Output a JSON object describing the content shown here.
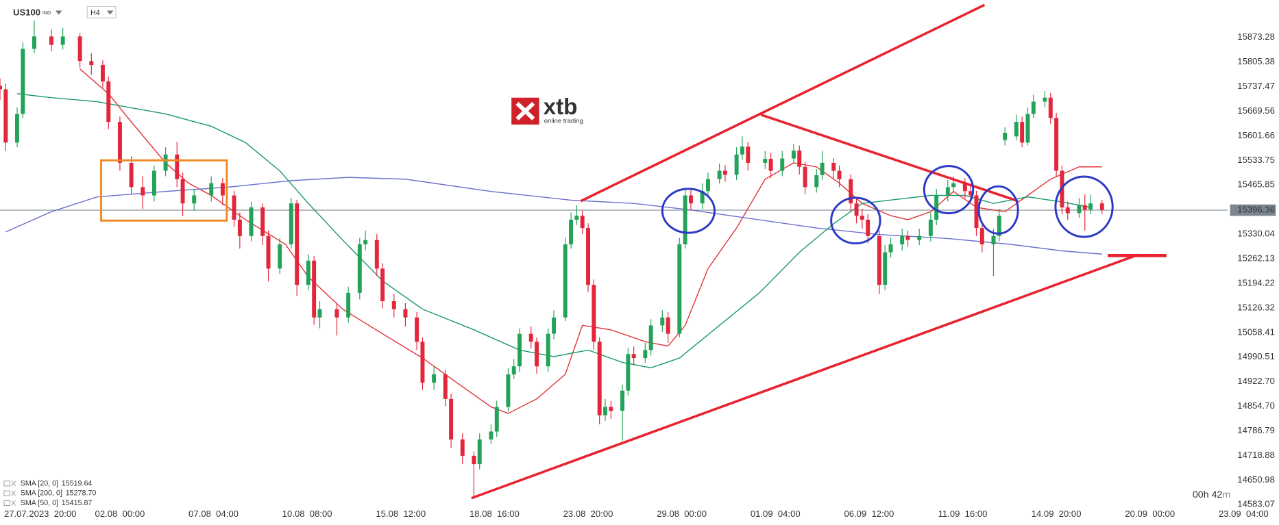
{
  "chart_data": {
    "type": "candlestick",
    "symbol": "US100",
    "market": "IND",
    "timeframe": "H4",
    "logo": {
      "brand": "xtb",
      "tagline": "online trading"
    },
    "timer": [
      "00h 42",
      "m"
    ],
    "last_price": 15396.36,
    "up_color": "#23a35a",
    "down_color": "#e3263b",
    "xlim": [
      0,
      224
    ],
    "ylim": [
      14578.6,
      15976.7
    ],
    "grid": false,
    "xticks": [
      {
        "value": 0,
        "label": "27.07.2023  20:00"
      },
      {
        "value": 21,
        "label": "02.08  00:00"
      },
      {
        "value": 37.4,
        "label": "07.08  04:00"
      },
      {
        "value": 53.8,
        "label": "10.08  08:00"
      },
      {
        "value": 70.2,
        "label": "15.08  12:00"
      },
      {
        "value": 86.6,
        "label": "18.08  16:00"
      },
      {
        "value": 103,
        "label": "23.08  20:00"
      },
      {
        "value": 119.4,
        "label": "29.08  00:00"
      },
      {
        "value": 135.8,
        "label": "01.09  04:00"
      },
      {
        "value": 152.2,
        "label": "06.09  12:00"
      },
      {
        "value": 168.6,
        "label": "11.09  16:00"
      },
      {
        "value": 185,
        "label": "14.09  20:00"
      },
      {
        "value": 201.4,
        "label": "20.09  00:00"
      },
      {
        "value": 217.8,
        "label": "23.09  04:00"
      }
    ],
    "yticks": [
      15873.28,
      15805.38,
      15737.47,
      15669.56,
      15601.66,
      15533.75,
      15465.85,
      15330.04,
      15262.13,
      15194.22,
      15126.32,
      15058.41,
      14990.51,
      {
        "value": 14922.7,
        "label": "14922.70"
      },
      {
        "value": 14854.7,
        "label": "14854.70"
      },
      14786.79,
      14718.88,
      14650.98,
      14583.07
    ],
    "x": [
      0,
      1,
      3,
      4,
      6,
      9,
      11,
      14,
      16,
      18,
      19,
      21,
      23,
      25,
      27,
      29,
      31,
      32,
      34,
      37,
      39,
      41,
      42,
      44,
      46,
      47,
      49,
      51,
      52,
      54,
      55,
      56,
      59,
      61,
      63,
      64,
      66,
      67,
      69,
      71,
      73,
      74,
      76,
      78,
      79,
      81,
      83,
      84,
      86,
      87,
      89,
      90,
      91,
      93,
      94,
      96,
      97,
      99,
      100,
      101,
      102,
      103,
      104,
      105,
      106,
      107,
      109,
      110,
      111,
      113,
      114,
      116,
      117,
      119,
      120,
      121,
      123,
      124,
      126,
      127,
      129,
      130,
      131,
      134,
      135,
      137,
      139,
      140,
      141,
      143,
      144,
      146,
      147,
      149,
      150,
      151,
      152,
      154,
      155,
      156,
      158,
      159,
      161,
      163,
      164,
      166,
      167,
      169,
      170,
      171,
      172,
      174,
      175,
      176,
      178,
      179,
      180,
      181,
      183,
      184,
      185,
      186,
      187,
      189,
      190,
      191,
      193
    ],
    "open": [
      15740,
      15730,
      15583,
      15662,
      15842,
      15876,
      15853,
      15876,
      15808,
      15797,
      15752,
      15640,
      15527,
      15460,
      15437,
      15505,
      15550,
      15482,
      15415,
      15437,
      15471,
      15437,
      15370,
      15325,
      15404,
      15325,
      15235,
      15302,
      15415,
      15190,
      15257,
      15100,
      15123,
      15100,
      15168,
      15302,
      15314,
      15235,
      15145,
      15123,
      15100,
      15033,
      14920,
      14943,
      14875,
      14763,
      14718,
      14695,
      14763,
      14785,
      14853,
      14943,
      14965,
      15055,
      15033,
      14965,
      15055,
      15100,
      15302,
      15370,
      15381,
      15347,
      15190,
      15033,
      14830,
      14853,
      14842,
      14898,
      14999,
      14988,
      15010,
      15078,
      15100,
      15055,
      15302,
      15437,
      15415,
      15449,
      15482,
      15505,
      15494,
      15550,
      15572,
      15527,
      15538,
      15505,
      15539,
      15561,
      15516,
      15460,
      15493,
      15527,
      15505,
      15482,
      15415,
      15381,
      15370,
      15325,
      15190,
      15280,
      15302,
      15325,
      15314,
      15325,
      15370,
      15437,
      15460,
      15471,
      15449,
      15437,
      15347,
      15302,
      15325,
      15590,
      15600,
      15640,
      15583,
      15662,
      15696,
      15707,
      15651,
      15505,
      15404,
      15388,
      15410,
      15398,
      15415
    ],
    "high": [
      15760,
      15745,
      15680,
      15860,
      15920,
      15895,
      15900,
      15885,
      15830,
      15810,
      15765,
      15655,
      15545,
      15490,
      15520,
      15570,
      15585,
      15500,
      15455,
      15490,
      15485,
      15450,
      15390,
      15420,
      15415,
      15340,
      15320,
      15430,
      15425,
      15275,
      15270,
      15145,
      15140,
      15185,
      15320,
      15340,
      15330,
      15250,
      15165,
      15140,
      15115,
      15045,
      14965,
      14955,
      14890,
      14780,
      14730,
      14780,
      14805,
      14870,
      14960,
      14985,
      15070,
      15075,
      15045,
      15070,
      15120,
      15320,
      15390,
      15410,
      15395,
      15360,
      15205,
      15045,
      14875,
      14870,
      14915,
      15015,
      15020,
      15030,
      15095,
      15120,
      15115,
      15320,
      15455,
      15455,
      15470,
      15500,
      15525,
      15520,
      15570,
      15600,
      15585,
      15560,
      15555,
      15560,
      15580,
      15575,
      15530,
      15510,
      15560,
      15540,
      15520,
      15495,
      15430,
      15400,
      15385,
      15340,
      15300,
      15320,
      15345,
      15340,
      15345,
      15390,
      15455,
      15480,
      15490,
      15485,
      15465,
      15450,
      15360,
      15345,
      15400,
      15625,
      15660,
      15655,
      15680,
      15715,
      15725,
      15720,
      15665,
      15520,
      15420,
      15430,
      15440,
      15440,
      15425
    ],
    "low": [
      15700,
      15560,
      15570,
      15650,
      15830,
      15835,
      15840,
      15790,
      15770,
      15735,
      15620,
      15505,
      15440,
      15400,
      15420,
      15490,
      15460,
      15380,
      15395,
      15420,
      15410,
      15350,
      15290,
      15310,
      15300,
      15200,
      15220,
      15290,
      15160,
      15175,
      15080,
      15070,
      15050,
      15085,
      15150,
      15285,
      15215,
      15125,
      15100,
      15075,
      15010,
      14900,
      14900,
      14855,
      14740,
      14695,
      14600,
      14680,
      14750,
      14770,
      14840,
      14930,
      14950,
      15015,
      14945,
      14950,
      15040,
      15090,
      15290,
      15355,
      15330,
      15170,
      15010,
      14805,
      14815,
      14820,
      14760,
      14885,
      14970,
      14975,
      14995,
      15060,
      15030,
      15045,
      15290,
      15395,
      15400,
      15435,
      15470,
      15475,
      15480,
      15535,
      15505,
      15510,
      15485,
      15490,
      15525,
      15495,
      15440,
      15445,
      15480,
      15485,
      15460,
      15395,
      15360,
      15345,
      15305,
      15165,
      15175,
      15265,
      15285,
      15295,
      15300,
      15310,
      15355,
      15420,
      15445,
      15430,
      15420,
      15325,
      15280,
      15215,
      15310,
      15575,
      15590,
      15570,
      15575,
      15650,
      15680,
      15635,
      15490,
      15385,
      15370,
      15375,
      15340,
      15385,
      15385
    ],
    "close": [
      15730,
      15583,
      15662,
      15842,
      15876,
      15853,
      15876,
      15808,
      15797,
      15752,
      15640,
      15527,
      15460,
      15437,
      15505,
      15550,
      15482,
      15415,
      15437,
      15471,
      15437,
      15370,
      15325,
      15404,
      15325,
      15235,
      15302,
      15415,
      15190,
      15257,
      15100,
      15123,
      15100,
      15168,
      15302,
      15314,
      15235,
      15145,
      15123,
      15100,
      15033,
      14920,
      14943,
      14875,
      14763,
      14718,
      14695,
      14763,
      14785,
      14853,
      14943,
      14965,
      15055,
      15033,
      14965,
      15055,
      15100,
      15302,
      15370,
      15381,
      15347,
      15190,
      15033,
      14830,
      14853,
      14842,
      14898,
      14999,
      14988,
      15010,
      15078,
      15100,
      15055,
      15302,
      15437,
      15415,
      15449,
      15482,
      15505,
      15494,
      15550,
      15572,
      15527,
      15538,
      15505,
      15539,
      15561,
      15516,
      15460,
      15493,
      15527,
      15505,
      15482,
      15415,
      15381,
      15370,
      15325,
      15190,
      15280,
      15302,
      15325,
      15314,
      15325,
      15370,
      15437,
      15460,
      15471,
      15449,
      15437,
      15347,
      15302,
      15325,
      15381,
      15610,
      15640,
      15583,
      15662,
      15696,
      15707,
      15651,
      15505,
      15404,
      15388,
      15410,
      15398,
      15415,
      15397
    ],
    "series": [
      {
        "name": "SMA [20, 0]",
        "legend_value": "15519.64",
        "color": "#e2363c",
        "x": [
          14,
          19,
          23,
          29,
          33,
          37,
          43,
          50,
          54,
          60,
          67,
          74,
          80,
          86,
          89,
          94,
          99,
          102,
          107,
          113,
          117,
          120,
          124,
          129,
          134,
          139,
          143,
          147,
          151,
          156,
          159,
          163,
          167,
          171,
          176,
          180,
          184,
          189,
          193
        ],
        "values": [
          15786,
          15718,
          15640,
          15527,
          15471,
          15437,
          15370,
          15302,
          15212,
          15123,
          15055,
          14988,
          14920,
          14853,
          14835,
          14875,
          14943,
          15078,
          15066,
          15033,
          15021,
          15078,
          15235,
          15347,
          15482,
          15527,
          15516,
          15471,
          15415,
          15381,
          15370,
          15392,
          15448,
          15404,
          15392,
          15437,
          15482,
          15516,
          15516
        ]
      },
      {
        "name": "SMA [200, 0]",
        "legend_value": "15278.70",
        "color": "#6c70cf",
        "x": [
          1,
          9,
          17,
          29,
          40,
          51,
          61,
          71,
          86,
          100,
          111,
          121,
          131,
          143,
          154,
          166,
          177,
          186,
          193
        ],
        "values": [
          15336,
          15392,
          15433,
          15448,
          15460,
          15478,
          15487,
          15482,
          15448,
          15424,
          15415,
          15397,
          15374,
          15347,
          15329,
          15318,
          15302,
          15284,
          15275
        ]
      },
      {
        "name": "SMA [50, 0]",
        "legend_value": "15415.87",
        "color": "#1d9a6c",
        "x": [
          3,
          9,
          17,
          29,
          37,
          43,
          49,
          54,
          60,
          67,
          74,
          83,
          91,
          97,
          103,
          109,
          114,
          119,
          126,
          133,
          140,
          146,
          151,
          157,
          163,
          169,
          174,
          180,
          186,
          191
        ],
        "values": [
          15718,
          15707,
          15696,
          15662,
          15628,
          15583,
          15505,
          15415,
          15314,
          15201,
          15123,
          15066,
          15010,
          14992,
          15010,
          14976,
          14961,
          14988,
          15078,
          15168,
          15280,
          15359,
          15415,
          15426,
          15437,
          15437,
          15415,
          15433,
          15419,
          15404
        ]
      }
    ]
  }
}
